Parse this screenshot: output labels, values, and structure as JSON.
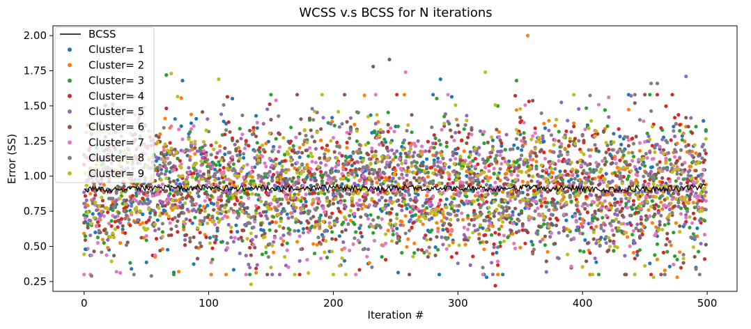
{
  "chart_data": {
    "type": "scatter",
    "title": "WCSS v.s BCSS for N iterations",
    "xlabel": "Iteration #",
    "ylabel": "Error (SS)",
    "xlim": [
      -25,
      524
    ],
    "ylim": [
      0.18,
      2.07
    ],
    "xticks": [
      0,
      100,
      200,
      300,
      400,
      500
    ],
    "yticks": [
      0.25,
      0.5,
      0.75,
      1.0,
      1.25,
      1.5,
      1.75,
      2.0
    ],
    "xtick_labels": [
      "0",
      "100",
      "200",
      "300",
      "400",
      "500"
    ],
    "ytick_labels": [
      "0.25",
      "0.50",
      "0.75",
      "1.00",
      "1.25",
      "1.50",
      "1.75",
      "2.00"
    ],
    "legend_position": "top-left",
    "grid": false,
    "iterations": 500,
    "line_series": {
      "name": "BCSS",
      "color": "#000000",
      "x": [
        0,
        20,
        40,
        60,
        80,
        100,
        120,
        140,
        160,
        180,
        200,
        220,
        240,
        260,
        280,
        300,
        320,
        340,
        360,
        380,
        400,
        420,
        440,
        460,
        480,
        499
      ],
      "y": [
        0.91,
        0.9,
        0.91,
        0.92,
        0.91,
        0.92,
        0.91,
        0.92,
        0.91,
        0.91,
        0.92,
        0.91,
        0.91,
        0.92,
        0.91,
        0.92,
        0.91,
        0.91,
        0.92,
        0.91,
        0.91,
        0.9,
        0.91,
        0.91,
        0.91,
        0.93
      ],
      "noise": 0.03
    },
    "scatter_series": [
      {
        "name": "Cluster= 1",
        "color": "#1f77b4"
      },
      {
        "name": "Cluster= 2",
        "color": "#ff7f0e"
      },
      {
        "name": "Cluster= 3",
        "color": "#2ca02c"
      },
      {
        "name": "Cluster= 4",
        "color": "#d62728"
      },
      {
        "name": "Cluster= 5",
        "color": "#9467bd"
      },
      {
        "name": "Cluster= 6",
        "color": "#8c564b"
      },
      {
        "name": "Cluster= 7",
        "color": "#e377c2"
      },
      {
        "name": "Cluster= 8",
        "color": "#7f7f7f"
      },
      {
        "name": "Cluster= 9",
        "color": "#bcbd22"
      }
    ],
    "scatter_distribution": {
      "mean": 0.92,
      "std": 0.25,
      "min": 0.22,
      "max": 2.0
    },
    "notable_points": [
      {
        "series": "Cluster= 2",
        "x": 356,
        "y": 2.0
      },
      {
        "series": "Cluster= 6",
        "x": 245,
        "y": 1.83
      },
      {
        "series": "Cluster= 6",
        "x": 232,
        "y": 1.78
      },
      {
        "series": "Cluster= 7",
        "x": 258,
        "y": 1.74
      },
      {
        "series": "Cluster= 9",
        "x": 322,
        "y": 1.74
      },
      {
        "series": "Cluster= 9",
        "x": 70,
        "y": 1.73
      },
      {
        "series": "Cluster= 3",
        "x": 66,
        "y": 1.72
      },
      {
        "series": "Cluster= 5",
        "x": 483,
        "y": 1.71
      },
      {
        "series": "Cluster= 1",
        "x": 286,
        "y": 1.69
      },
      {
        "series": "Cluster= 9",
        "x": 108,
        "y": 1.69
      },
      {
        "series": "Cluster= 1",
        "x": 79,
        "y": 1.68
      },
      {
        "series": "Cluster= 3",
        "x": 347,
        "y": 1.68
      },
      {
        "series": "Cluster= 5",
        "x": 460,
        "y": 1.66
      },
      {
        "series": "Cluster= 8",
        "x": 455,
        "y": 1.66
      },
      {
        "series": "Cluster= 9",
        "x": 134,
        "y": 0.23
      },
      {
        "series": "Cluster= 4",
        "x": 330,
        "y": 0.22
      },
      {
        "series": "Cluster= 1",
        "x": 323,
        "y": 0.28
      },
      {
        "series": "Cluster= 2",
        "x": 476,
        "y": 0.28
      },
      {
        "series": "Cluster= 8",
        "x": 6,
        "y": 0.29
      },
      {
        "series": "Cluster= 8",
        "x": 54,
        "y": 0.29
      },
      {
        "series": "Cluster= 9",
        "x": 457,
        "y": 0.28
      },
      {
        "series": "Cluster= 4",
        "x": 498,
        "y": 0.41
      },
      {
        "series": "Cluster= 1",
        "x": 1,
        "y": 0.48
      },
      {
        "series": "Cluster= 1",
        "x": 38,
        "y": 0.34
      }
    ]
  }
}
